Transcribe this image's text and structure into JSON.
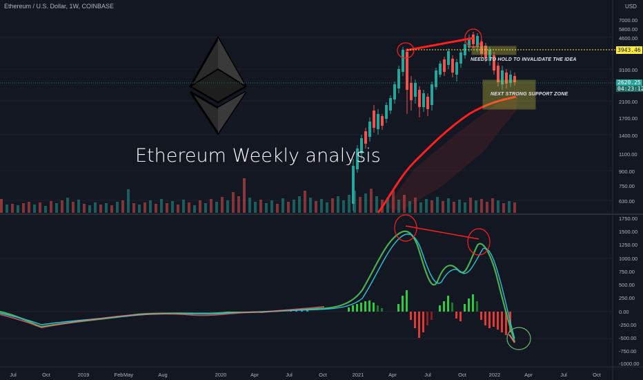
{
  "chart": {
    "symbol": "Ethereum / U.S. Dollar, 1W, COINBASE",
    "currency": "USD",
    "headline": "Ethereum Weekly analysis",
    "logo": "ethereum-diamond-logo",
    "annotations": {
      "resistance_note": "NEEDS TO HOLD TO INVALIDATE THE IDEA",
      "support_note": "NEXT STRONG SUPPORT ZONE"
    },
    "price_axis": [
      "7000.00",
      "5800.00",
      "4600.00",
      "3100.00",
      "2100.00",
      "1700.00",
      "1400.00",
      "1100.00",
      "900.00",
      "750.00",
      "630.00"
    ],
    "resistance_price": "3943.46",
    "current_price": "2620.25",
    "countdown": "04:23:12",
    "oscillator_axis": [
      "1750.00",
      "1500.00",
      "1250.00",
      "1000.00",
      "750.00",
      "500.00",
      "250.00",
      "0.00",
      "-250.00",
      "-500.00",
      "-750.00",
      "-1000.00"
    ],
    "time_axis": [
      "Jul",
      "Oct",
      "2019",
      "Feb",
      "May",
      "Aug",
      "2020",
      "Apr",
      "Jul",
      "Oct",
      "2021",
      "Apr",
      "Jul",
      "Oct",
      "2022",
      "Apr",
      "Jul",
      "Oct"
    ],
    "colors": {
      "background": "#131722",
      "bull": "#26a69a",
      "bear": "#ef5350",
      "resistance": "#ffeb3b",
      "trend": "#ff1f1f",
      "macd": "#4caf50",
      "signal": "#26c6da"
    }
  }
}
